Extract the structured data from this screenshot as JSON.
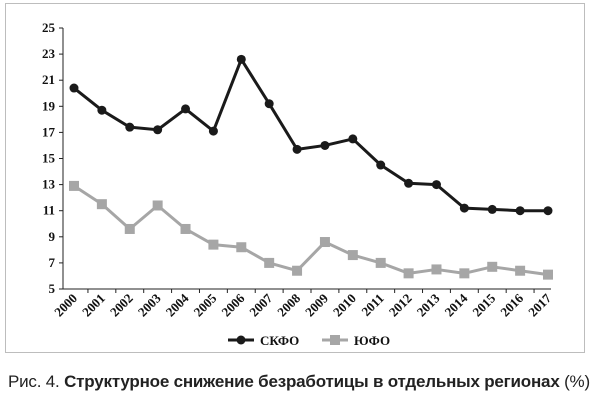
{
  "chart_data": {
    "type": "line",
    "x": [
      "2000",
      "2001",
      "2002",
      "2003",
      "2004",
      "2005",
      "2006",
      "2007",
      "2008",
      "2009",
      "2010",
      "2011",
      "2012",
      "2013",
      "2014",
      "2015",
      "2016",
      "2017"
    ],
    "ylim": [
      5,
      25
    ],
    "yticks": [
      5,
      7,
      9,
      11,
      13,
      15,
      17,
      19,
      21,
      23,
      25
    ],
    "grid": false,
    "legend": "bottom-center",
    "series": [
      {
        "name": "СКФО",
        "color": "#1a1a1a",
        "marker": "circle",
        "values": [
          20.4,
          18.7,
          17.4,
          17.2,
          18.8,
          17.1,
          22.6,
          19.2,
          15.7,
          16.0,
          16.5,
          14.5,
          13.1,
          13.0,
          11.2,
          11.1,
          11.0,
          11.0
        ]
      },
      {
        "name": "ЮФО",
        "color": "#a6a6a6",
        "marker": "square",
        "values": [
          12.9,
          11.5,
          9.6,
          11.4,
          9.6,
          8.4,
          8.2,
          7.0,
          6.4,
          8.6,
          7.6,
          7.0,
          6.2,
          6.5,
          6.2,
          6.7,
          6.4,
          6.1
        ]
      }
    ]
  },
  "caption": {
    "prefix": "Рис. 4. ",
    "title": "Структурное снижение безработицы в отдельных регионах",
    "suffix": " (%)"
  }
}
